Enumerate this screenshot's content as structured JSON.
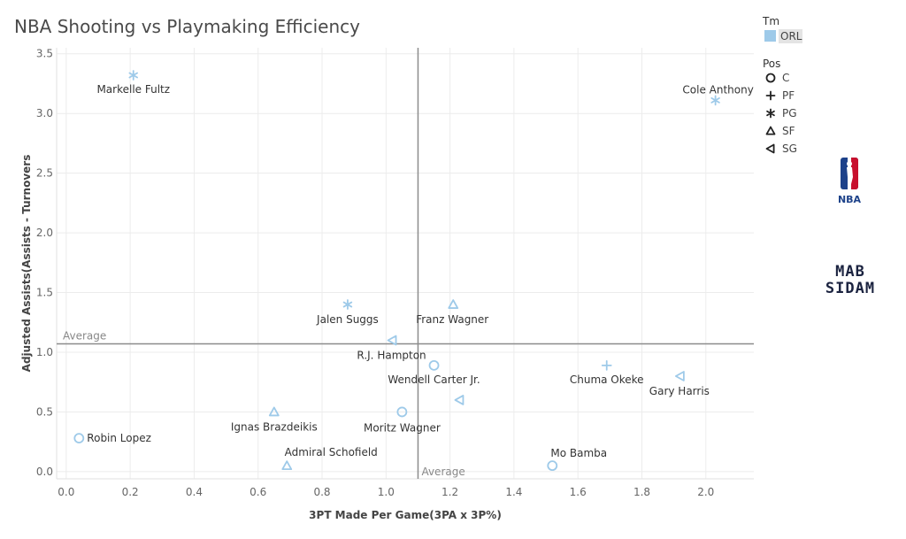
{
  "chart_data": {
    "type": "scatter",
    "title": "NBA Shooting vs Playmaking Efficiency",
    "xlabel": "3PT Made Per Game(3PA x 3P%)",
    "ylabel": "Adjusted Assists(Assists - Turnovers",
    "xlim": [
      -0.03,
      2.15
    ],
    "ylim": [
      -0.06,
      3.55
    ],
    "xticks": [
      "0.0",
      "0.2",
      "0.4",
      "0.6",
      "0.8",
      "1.0",
      "1.2",
      "1.4",
      "1.6",
      "1.8",
      "2.0"
    ],
    "xtick_values": [
      0,
      0.2,
      0.4,
      0.6,
      0.8,
      1.0,
      1.2,
      1.4,
      1.6,
      1.8,
      2.0
    ],
    "yticks": [
      "0.0",
      "0.5",
      "1.0",
      "1.5",
      "2.0",
      "2.5",
      "3.0",
      "3.5"
    ],
    "ytick_values": [
      0,
      0.5,
      1.0,
      1.5,
      2.0,
      2.5,
      3.0,
      3.5
    ],
    "grid": true,
    "reference_lines": [
      {
        "axis": "x",
        "value": 1.1,
        "label": "Average"
      },
      {
        "axis": "y",
        "value": 1.07,
        "label": "Average"
      }
    ],
    "legend": {
      "placement": "right",
      "color_title": "Tm",
      "color_items": [
        {
          "label": "ORL",
          "color": "#9ecae9"
        }
      ],
      "shape_title": "Pos",
      "shape_items": [
        {
          "label": "C",
          "shape": "circle"
        },
        {
          "label": "PF",
          "shape": "plus"
        },
        {
          "label": "PG",
          "shape": "asterisk"
        },
        {
          "label": "SF",
          "shape": "triangle"
        },
        {
          "label": "SG",
          "shape": "triangle-left"
        }
      ]
    },
    "points": [
      {
        "name": "Markelle Fultz",
        "x": 0.21,
        "y": 3.32,
        "pos": "PG"
      },
      {
        "name": "Cole Anthony",
        "x": 2.03,
        "y": 3.11,
        "pos": "PG"
      },
      {
        "name": "Jalen Suggs",
        "x": 0.88,
        "y": 1.4,
        "pos": "PG"
      },
      {
        "name": "Franz Wagner",
        "x": 1.21,
        "y": 1.4,
        "pos": "SF"
      },
      {
        "name": "R.J. Hampton",
        "x": 1.02,
        "y": 1.1,
        "pos": "SG"
      },
      {
        "name": "Wendell Carter Jr.",
        "x": 1.15,
        "y": 0.89,
        "pos": "C"
      },
      {
        "name": "Chuma Okeke",
        "x": 1.69,
        "y": 0.89,
        "pos": "PF"
      },
      {
        "name": "Gary Harris",
        "x": 1.92,
        "y": 0.8,
        "pos": "SG"
      },
      {
        "name": "",
        "x": 1.23,
        "y": 0.6,
        "pos": "SG"
      },
      {
        "name": "Ignas Brazdeikis",
        "x": 0.65,
        "y": 0.5,
        "pos": "SF"
      },
      {
        "name": "Moritz Wagner",
        "x": 1.05,
        "y": 0.5,
        "pos": "C"
      },
      {
        "name": "Robin Lopez",
        "x": 0.04,
        "y": 0.28,
        "pos": "C"
      },
      {
        "name": "Admiral Schofield",
        "x": 0.69,
        "y": 0.05,
        "pos": "SF"
      },
      {
        "name": "Mo Bamba",
        "x": 1.52,
        "y": 0.05,
        "pos": "C"
      }
    ],
    "colors": {
      "point": "#9ecae9",
      "reference_line": "#8c8c8c",
      "grid": "#ececec"
    }
  },
  "logos": {
    "nba": "NBA",
    "brand_line1": "MAB",
    "brand_line2": "SIDAM"
  }
}
